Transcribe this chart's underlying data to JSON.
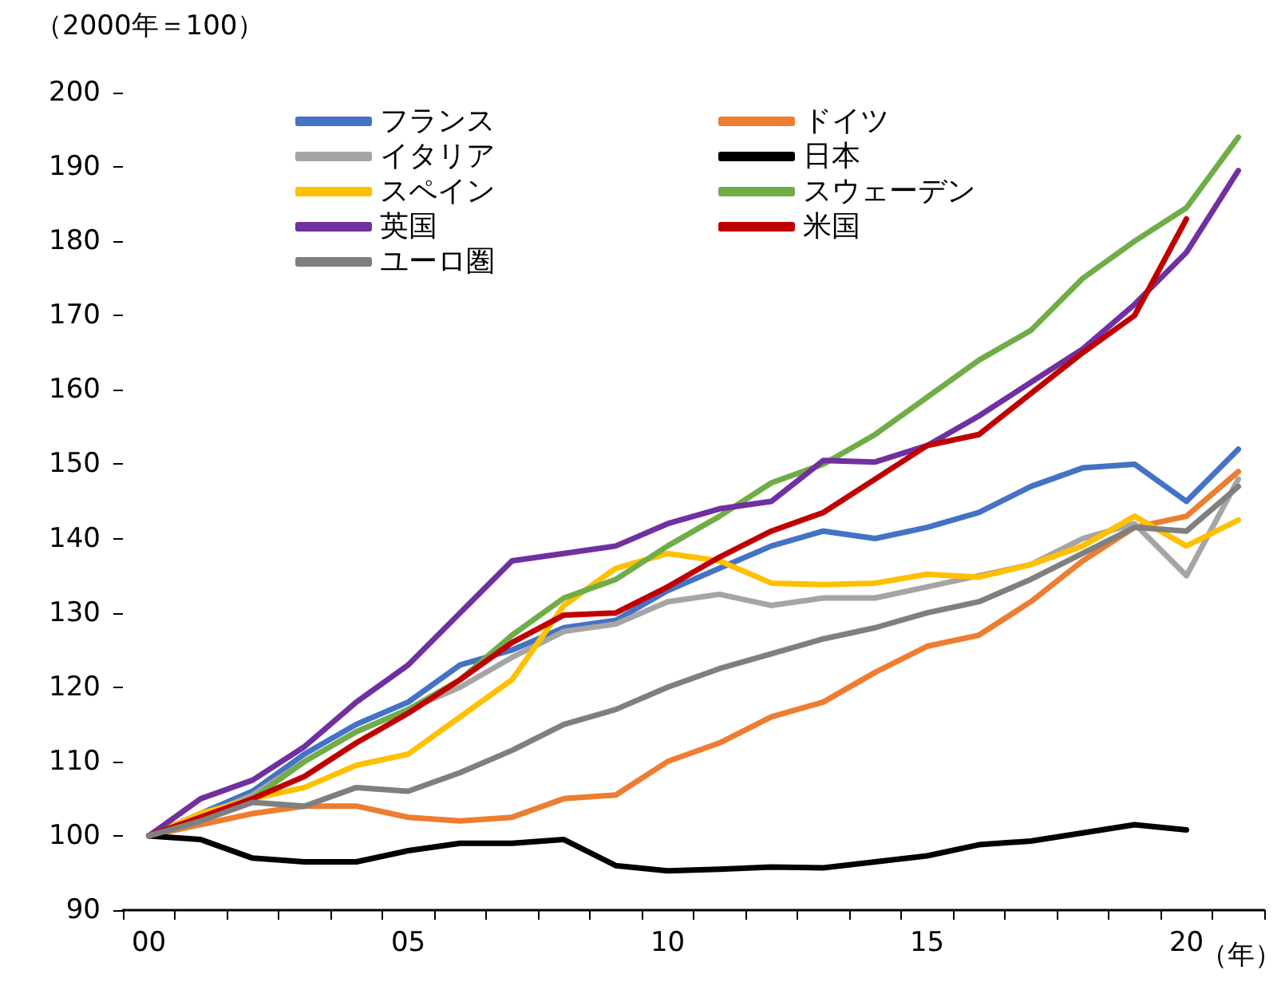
{
  "chart_data": {
    "type": "line",
    "ylabel": "（2000年＝100）",
    "xlabel": "（年）",
    "categories": [
      "00",
      null,
      null,
      null,
      null,
      "05",
      null,
      null,
      null,
      null,
      "10",
      null,
      null,
      null,
      null,
      "15",
      null,
      null,
      null,
      null,
      "20",
      null
    ],
    "ylim": [
      90,
      200
    ],
    "yticks": [
      90,
      100,
      110,
      120,
      130,
      140,
      150,
      160,
      170,
      180,
      190,
      200
    ],
    "grid": false,
    "legend": "top",
    "marker": "none",
    "line_style": "solid",
    "series": [
      {
        "name": "フランス",
        "color": "#4472c4",
        "values": [
          100,
          103,
          106,
          111,
          115,
          118,
          123,
          125,
          128,
          129,
          133,
          136,
          139,
          141,
          140,
          141.5,
          143.5,
          147,
          149.5,
          150,
          145,
          152
        ]
      },
      {
        "name": "ドイツ",
        "color": "#ed7d31",
        "values": [
          100,
          101.5,
          103,
          104,
          104,
          102.5,
          102,
          102.5,
          105,
          105.5,
          110,
          112.5,
          116,
          118,
          122,
          125.5,
          127,
          131.5,
          137,
          141.5,
          143,
          149
        ]
      },
      {
        "name": "イタリア",
        "color": "#a5a5a5",
        "values": [
          100,
          102.5,
          105.5,
          110,
          114,
          117,
          120,
          124,
          127.5,
          128.5,
          131.5,
          132.5,
          131,
          132,
          132,
          133.5,
          135,
          136.5,
          140,
          142,
          135,
          148
        ]
      },
      {
        "name": "日本",
        "color": "#000000",
        "values": [
          100,
          99.5,
          97,
          96.5,
          96.5,
          98,
          99,
          99,
          99.5,
          96,
          95.3,
          95.5,
          95.8,
          95.7,
          96.5,
          97.3,
          98.8,
          99.3,
          100.4,
          101.5,
          100.8,
          null
        ]
      },
      {
        "name": "スペイン",
        "color": "#ffc000",
        "values": [
          100,
          103,
          105,
          106.5,
          109.5,
          111,
          116,
          121,
          131,
          136,
          138,
          137,
          134,
          133.8,
          134,
          135.2,
          134.8,
          136.5,
          139,
          143,
          139,
          142.5
        ]
      },
      {
        "name": "スウェーデン",
        "color": "#70ad47",
        "values": [
          100,
          102,
          105,
          110,
          114,
          117,
          121,
          127,
          132,
          134.5,
          139,
          143,
          147.5,
          150,
          154,
          159,
          164,
          168,
          175,
          180,
          184.5,
          194
        ]
      },
      {
        "name": "英国",
        "color": "#7030a0",
        "values": [
          100,
          105,
          107.5,
          112,
          118,
          123,
          130,
          137,
          138,
          139,
          142,
          144,
          145,
          150.5,
          150.3,
          152.5,
          156.5,
          161,
          165.5,
          171.5,
          178.5,
          189.5
        ]
      },
      {
        "name": "米国",
        "color": "#c00000",
        "values": [
          100,
          102.5,
          105,
          108,
          112.5,
          116.5,
          121,
          126,
          129.7,
          130,
          133.5,
          137.5,
          141,
          143.5,
          148,
          152.5,
          154,
          159.5,
          165,
          170,
          183,
          null
        ]
      },
      {
        "name": "ユーロ圏",
        "color": "#7f7f7f",
        "values": [
          100,
          102,
          104.5,
          104,
          106.5,
          106,
          108.5,
          111.5,
          115,
          117,
          120,
          122.5,
          124.5,
          126.5,
          128,
          130,
          131.5,
          134.5,
          138,
          141.5,
          141,
          147
        ]
      }
    ]
  }
}
